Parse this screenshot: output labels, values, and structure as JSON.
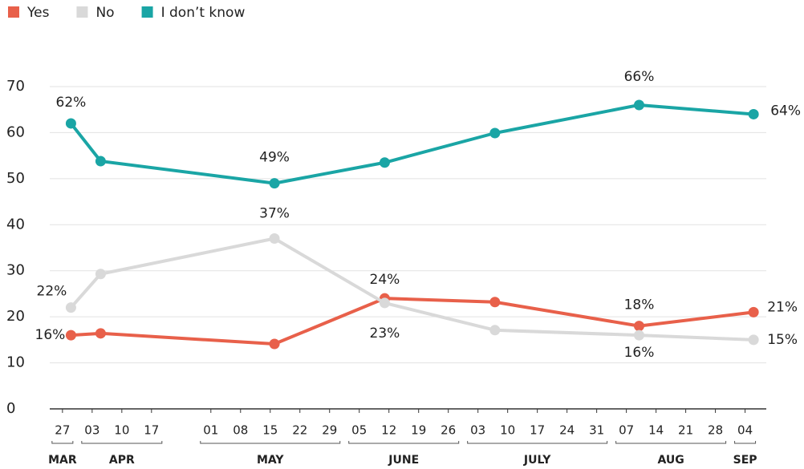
{
  "chart_data": {
    "type": "line",
    "x": [
      "03-29",
      "04-05",
      "05-16",
      "06-11",
      "07-07",
      "08-10",
      "09-06"
    ],
    "series": [
      {
        "name": "Yes",
        "color": "#e8604a",
        "values": [
          16,
          16.4,
          14.1,
          24,
          23.2,
          18,
          21
        ],
        "value_labels": [
          "16%",
          null,
          null,
          "24%",
          null,
          "18%",
          "21%"
        ]
      },
      {
        "name": "No",
        "color": "#d9d9d9",
        "values": [
          22,
          29.3,
          37,
          23,
          17.1,
          16,
          15
        ],
        "value_labels": [
          "22%",
          null,
          "37%",
          "23%",
          null,
          "16%",
          "15%"
        ]
      },
      {
        "name": "I don’t know",
        "color": "#1aa5a5",
        "values": [
          62,
          53.8,
          49,
          53.5,
          59.9,
          66,
          64
        ],
        "value_labels": [
          "62%",
          null,
          "49%",
          null,
          null,
          "66%",
          "64%"
        ]
      }
    ],
    "ylim": [
      0,
      70
    ],
    "yticks": [
      0,
      10,
      20,
      30,
      40,
      50,
      60,
      70
    ],
    "xlim": [
      "03-24",
      "09-09"
    ],
    "xticks": [
      {
        "value": "03-27",
        "label": "27"
      },
      {
        "value": "04-03",
        "label": "03"
      },
      {
        "value": "04-10",
        "label": "10"
      },
      {
        "value": "04-17",
        "label": "17"
      },
      {
        "value": "05-01",
        "label": "01"
      },
      {
        "value": "05-08",
        "label": "08"
      },
      {
        "value": "05-15",
        "label": "15"
      },
      {
        "value": "05-22",
        "label": "22"
      },
      {
        "value": "05-29",
        "label": "29"
      },
      {
        "value": "06-05",
        "label": "05"
      },
      {
        "value": "06-12",
        "label": "12"
      },
      {
        "value": "06-19",
        "label": "19"
      },
      {
        "value": "06-26",
        "label": "26"
      },
      {
        "value": "07-03",
        "label": "03"
      },
      {
        "value": "07-10",
        "label": "10"
      },
      {
        "value": "07-17",
        "label": "17"
      },
      {
        "value": "07-24",
        "label": "24"
      },
      {
        "value": "07-31",
        "label": "31"
      },
      {
        "value": "08-07",
        "label": "07"
      },
      {
        "value": "08-14",
        "label": "14"
      },
      {
        "value": "08-21",
        "label": "21"
      },
      {
        "value": "08-28",
        "label": "28"
      },
      {
        "value": "09-04",
        "label": "04"
      }
    ],
    "months": [
      {
        "label": "MAR",
        "from": "03-27",
        "to": "03-27"
      },
      {
        "label": "APR",
        "from": "04-03",
        "to": "04-17"
      },
      {
        "label": "MAY",
        "from": "05-01",
        "to": "05-29"
      },
      {
        "label": "JUNE",
        "from": "06-05",
        "to": "06-26"
      },
      {
        "label": "JULY",
        "from": "07-03",
        "to": "07-31"
      },
      {
        "label": "AUG",
        "from": "08-07",
        "to": "08-28"
      },
      {
        "label": "SEP",
        "from": "09-04",
        "to": "09-04"
      }
    ],
    "grid": true,
    "legend": "top-left"
  }
}
